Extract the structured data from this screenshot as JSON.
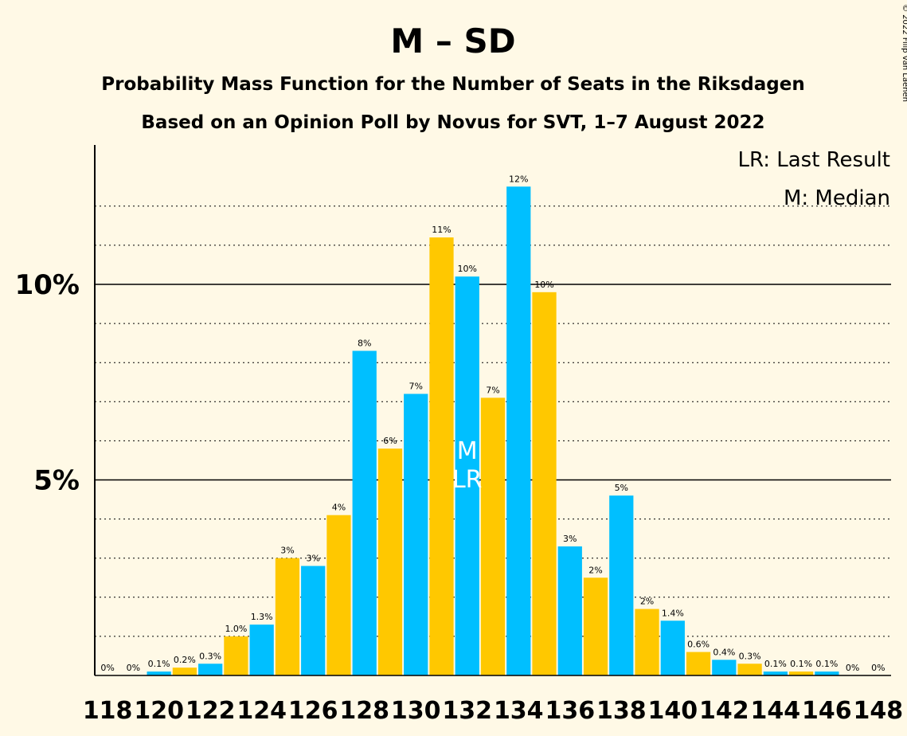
{
  "chart_data": {
    "type": "bar",
    "title": "M – SD",
    "subtitle": "Probability Mass Function for the Number of Seats in the Riksdagen",
    "subtitle2": "Based on an Opinion Poll by Novus for SVT, 1–7 August 2022",
    "copyright": "© 2022 Filip van Laenen",
    "legend": [
      "LR: Last Result",
      "M: Median"
    ],
    "legend_position": "top-right",
    "xlabel": "",
    "ylabel": "",
    "ylim": [
      0,
      13.5
    ],
    "y_ticks": [
      {
        "value": 5,
        "label": "5%"
      },
      {
        "value": 10,
        "label": "10%"
      }
    ],
    "x_tick_labels": [
      "118",
      "120",
      "122",
      "124",
      "126",
      "128",
      "130",
      "132",
      "134",
      "136",
      "138",
      "140",
      "142",
      "144",
      "146",
      "148"
    ],
    "categories": [
      118,
      119,
      120,
      121,
      122,
      123,
      124,
      125,
      126,
      127,
      128,
      129,
      130,
      131,
      132,
      133,
      134,
      135,
      136,
      137,
      138,
      139,
      140,
      141,
      142,
      143,
      144,
      145,
      146,
      147,
      148
    ],
    "values": [
      0,
      0,
      0.1,
      0.2,
      0.3,
      1.0,
      1.3,
      3.0,
      2.8,
      4.1,
      8.3,
      5.8,
      7.2,
      11.2,
      10.2,
      7.1,
      12.5,
      9.8,
      3.3,
      2.5,
      4.6,
      1.7,
      1.4,
      0.6,
      0.4,
      0.3,
      0.1,
      0.1,
      0.1,
      0,
      0
    ],
    "labels": [
      "0%",
      "0%",
      "0.1%",
      "0.2%",
      "0.3%",
      "1.0%",
      "1.3%",
      "3%",
      "3%",
      "4%",
      "8%",
      "6%",
      "7%",
      "11%",
      "10%",
      "7%",
      "12%",
      "10%",
      "3%",
      "2%",
      "5%",
      "2%",
      "1.4%",
      "0.6%",
      "0.4%",
      "0.3%",
      "0.1%",
      "0.1%",
      "0.1%",
      "0%",
      "0%"
    ],
    "median_seat": 132,
    "median_text": "M",
    "last_result_seat": 132,
    "last_result_text": "LR",
    "colors": {
      "blue": "#00BFFF",
      "yellow": "#FFC800",
      "background": "#FFF9E6"
    },
    "grid": true
  }
}
